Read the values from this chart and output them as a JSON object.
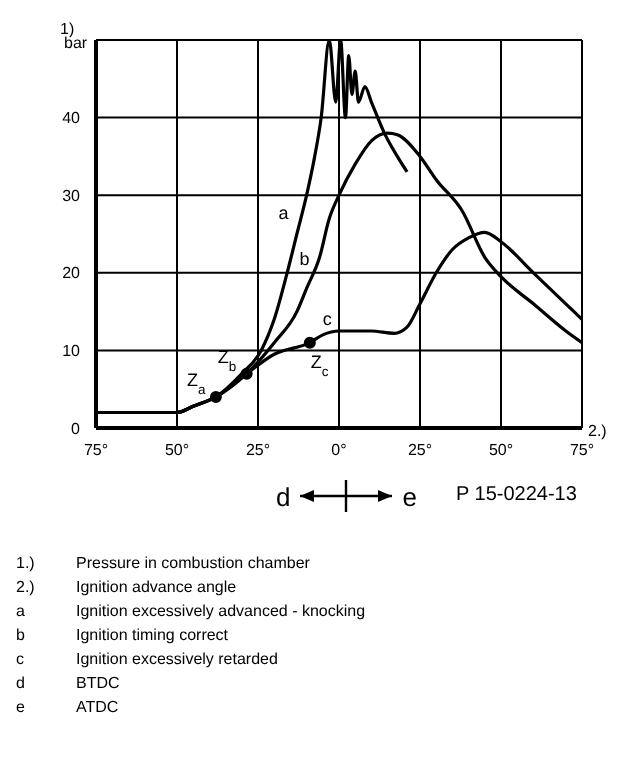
{
  "chart_data": {
    "type": "line",
    "ylabel": "1)\nbar",
    "xlabel": "2.)",
    "xlim": [
      -75,
      75
    ],
    "ylim": [
      0,
      50
    ],
    "xticks": [
      {
        "value": -75,
        "label": "75°"
      },
      {
        "value": -50,
        "label": "50°"
      },
      {
        "value": -25,
        "label": "25°"
      },
      {
        "value": 0,
        "label": "0°"
      },
      {
        "value": 25,
        "label": "25°"
      },
      {
        "value": 50,
        "label": "50°"
      },
      {
        "value": 75,
        "label": "75°"
      }
    ],
    "yticks": [
      {
        "value": 0,
        "label": "0"
      },
      {
        "value": 10,
        "label": "10"
      },
      {
        "value": 20,
        "label": "20"
      },
      {
        "value": 30,
        "label": "30"
      },
      {
        "value": 40,
        "label": "40"
      },
      {
        "value": 50,
        "label": null
      }
    ],
    "grid": true,
    "marker": "none",
    "line_style": "solid",
    "series": [
      {
        "name": "a",
        "color": "#000000",
        "x": [
          -75,
          -50,
          -45,
          -38,
          -30,
          -24,
          -20,
          -16,
          -13,
          -10,
          -7.5,
          -5.5,
          -3,
          -1,
          0.5,
          2,
          3,
          4,
          5,
          6,
          8,
          10,
          14,
          18,
          21
        ],
        "values": [
          2,
          2,
          2.8,
          4,
          7,
          10,
          14,
          20,
          25,
          30,
          35,
          40,
          50,
          42,
          50,
          40,
          48,
          43,
          46,
          42,
          44,
          42,
          38,
          35,
          33
        ]
      },
      {
        "name": "b",
        "color": "#000000",
        "x": [
          -75,
          -50,
          -45,
          -38,
          -28.5,
          -20,
          -13,
          -10,
          -6,
          -3,
          0,
          5,
          10,
          15,
          18,
          25,
          30,
          38,
          45,
          50,
          60,
          70,
          75
        ],
        "values": [
          2,
          2,
          2.8,
          4,
          7,
          11,
          15,
          18,
          22,
          27,
          30,
          34,
          37,
          38,
          37.8,
          35,
          32,
          28,
          22,
          19.5,
          16,
          12.5,
          11
        ]
      },
      {
        "name": "c",
        "color": "#000000",
        "x": [
          -75,
          -50,
          -45,
          -38,
          -28.5,
          -20,
          -9,
          -5,
          0,
          5,
          10,
          17,
          21,
          25,
          30,
          35,
          40,
          45,
          50,
          60,
          70,
          75
        ],
        "values": [
          2,
          2,
          2.8,
          4,
          7,
          9.5,
          11,
          12,
          12.5,
          12.5,
          12.5,
          12.2,
          13,
          16,
          20,
          23,
          24.5,
          25.2,
          24,
          20,
          16,
          14
        ]
      }
    ],
    "annotations": [
      {
        "text": "Z$_{a}$",
        "x": -38,
        "y": 4
      },
      {
        "text": "Z$_{b}$",
        "x": -28.5,
        "y": 7
      },
      {
        "text": "Z$_{c}$",
        "x": -9,
        "y": 11
      },
      "d",
      "e",
      "P 15-0224-13",
      "1.) Pressure in combustion chamber",
      "2.) Ignition advance angle",
      "a Ignition excessively advanced - knocking",
      "b Ignition timing correct",
      "c Ignition excessively retarded",
      "d BTDC",
      "e ATDC"
    ]
  }
}
